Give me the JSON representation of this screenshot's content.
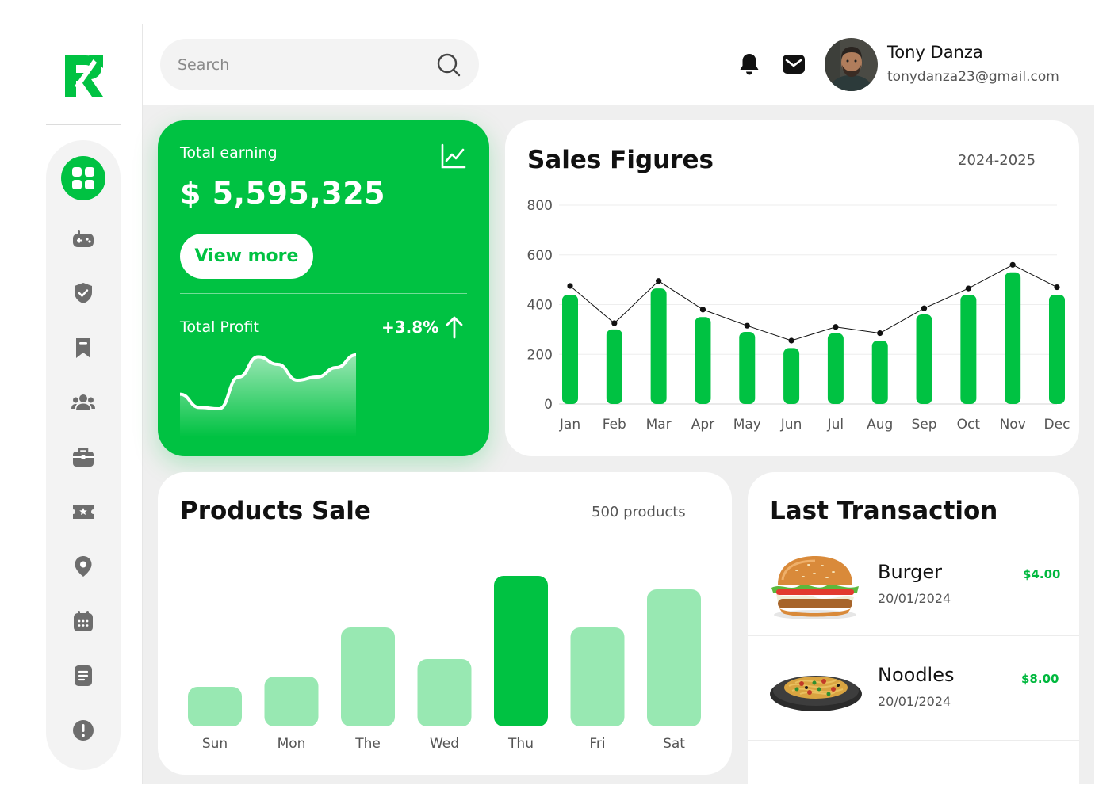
{
  "header": {
    "search": {
      "placeholder": "Search"
    },
    "user": {
      "name": "Tony Danza",
      "email": "tonydanza23@gmail.com"
    }
  },
  "sidebar": {
    "items": [
      {
        "icon": "grid-icon",
        "active": true
      },
      {
        "icon": "gamepad-icon"
      },
      {
        "icon": "shield-check-icon"
      },
      {
        "icon": "bookmark-icon"
      },
      {
        "icon": "users-icon"
      },
      {
        "icon": "briefcase-icon"
      },
      {
        "icon": "ticket-icon"
      },
      {
        "icon": "location-pin-icon"
      },
      {
        "icon": "calendar-icon"
      },
      {
        "icon": "document-icon"
      },
      {
        "icon": "alert-icon"
      }
    ]
  },
  "earning": {
    "label": "Total earning",
    "amount": "$ 5,595,325",
    "button": "View more",
    "profit_label": "Total Profit",
    "profit_change": "+3.8%"
  },
  "sales": {
    "title": "Sales Figures",
    "period": "2024-2025",
    "chart_data": {
      "type": "bar",
      "categories": [
        "Jan",
        "Feb",
        "Mar",
        "Apr",
        "May",
        "Jun",
        "Jul",
        "Aug",
        "Sep",
        "Oct",
        "Nov",
        "Dec"
      ],
      "series": [
        {
          "values": [
            440,
            300,
            465,
            350,
            290,
            225,
            285,
            255,
            360,
            440,
            530,
            440
          ]
        },
        {
          "values": [
            475,
            325,
            495,
            380,
            315,
            255,
            310,
            285,
            385,
            465,
            560,
            470
          ]
        }
      ],
      "ylim": [
        0,
        800
      ],
      "yticks": [
        0,
        200,
        400,
        600,
        800
      ],
      "grid": true,
      "colors": {
        "bar": "#00c242",
        "line": "#111111"
      }
    }
  },
  "products": {
    "title": "Products Sale",
    "count": "500 products",
    "chart_data": {
      "type": "bar",
      "categories": [
        "Sun",
        "Mon",
        "The",
        "Wed",
        "Thu",
        "Fri",
        "Sat"
      ],
      "values": [
        50,
        63,
        125,
        85,
        190,
        125,
        173
      ],
      "highlight": "Thu",
      "colors": {
        "bar": "#98e8b2",
        "highlight": "#00c242"
      }
    }
  },
  "transactions": {
    "title": "Last Transaction",
    "items": [
      {
        "name": "Burger",
        "date": "20/01/2024",
        "amount": "$4.00"
      },
      {
        "name": "Noodles",
        "date": "20/01/2024",
        "amount": "$8.00"
      }
    ]
  },
  "profit_chart": {
    "type": "area",
    "values": [
      0.33,
      0.12,
      0.1,
      0.6,
      0.92,
      0.8,
      0.55,
      0.6,
      0.75,
      0.95
    ]
  },
  "colors": {
    "brand": "#00c242",
    "light": "#98e8b2"
  }
}
